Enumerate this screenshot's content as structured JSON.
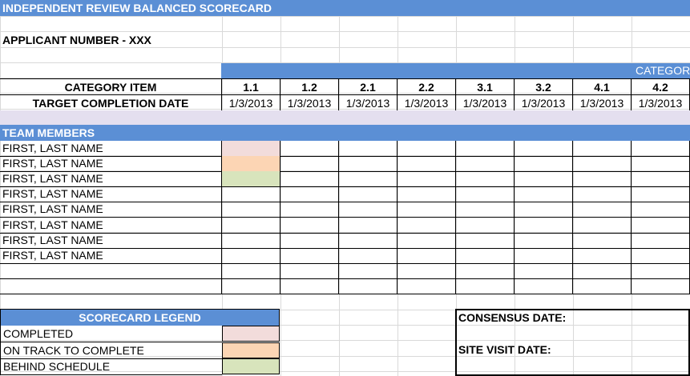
{
  "title": "INDEPENDENT REVIEW BALANCED SCORECARD",
  "applicant": "APPLICANT NUMBER - XXX",
  "category_band": "CATEGOR",
  "category_item_label": "CATEGORY ITEM",
  "target_label": "TARGET COMPLETION DATE",
  "categories": [
    "1.1",
    "1.2",
    "2.1",
    "2.2",
    "3.1",
    "3.2",
    "4.1",
    "4.2"
  ],
  "dates": [
    "1/3/2013",
    "1/3/2013",
    "1/3/2013",
    "1/3/2013",
    "1/3/2013",
    "1/3/2013",
    "1/3/2013",
    "1/3/2013"
  ],
  "team_header": "TEAM MEMBERS",
  "members": [
    "FIRST, LAST NAME",
    "FIRST, LAST NAME",
    "FIRST, LAST NAME",
    "FIRST, LAST NAME",
    "FIRST, LAST NAME",
    "FIRST, LAST NAME",
    "FIRST, LAST NAME",
    "FIRST, LAST NAME"
  ],
  "member_colors": [
    "#f2dcdb",
    "#fcd5b4",
    "#d8e4bc"
  ],
  "legend": {
    "header": "SCORECARD LEGEND",
    "items": [
      {
        "label": "COMPLETED",
        "color": "#f2dcdb"
      },
      {
        "label": "ON TRACK TO COMPLETE",
        "color": "#fcd5b4"
      },
      {
        "label": "BEHIND SCHEDULE",
        "color": "#d8e4bc"
      }
    ]
  },
  "consensus_date_label": "CONSENSUS DATE:",
  "site_visit_label": "SITE VISIT DATE:",
  "colors": {
    "header_blue": "#5b8fd5",
    "lavender": "#e4dfef"
  }
}
